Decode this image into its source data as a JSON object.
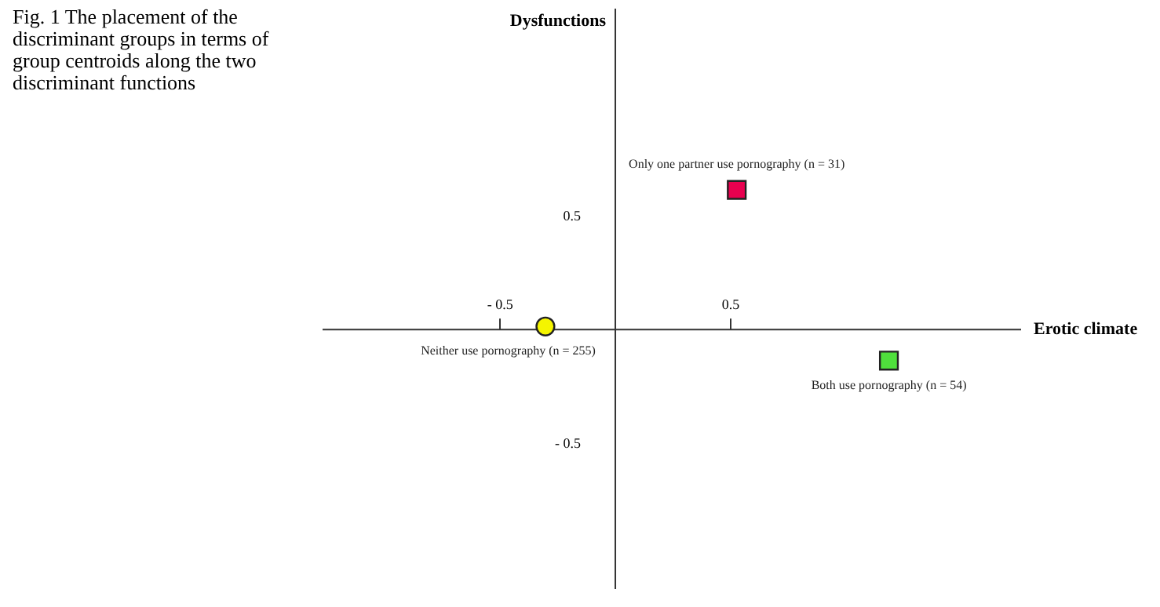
{
  "chart_data": {
    "type": "scatter",
    "title": "Fig. 1 The placement of the discriminant groups in terms of group centroids along the two discriminant functions",
    "xlabel": "Erotic climate",
    "ylabel": "Dysfunctions",
    "series": [
      {
        "name": "Only one partner use pornography  (n = 31)",
        "color": "#e8004f",
        "marker": "square",
        "x": [
          0.53
        ],
        "values": [
          0.61
        ]
      },
      {
        "name": "Neither use pornography  (n = 255)",
        "color": "#f5f500",
        "marker": "circle",
        "x": [
          -0.3
        ],
        "values": [
          0.01
        ]
      },
      {
        "name": "Both use pornography (n = 54)",
        "color": "#4fe03c",
        "marker": "square",
        "x": [
          1.19
        ],
        "values": [
          -0.14
        ]
      }
    ],
    "xlim": [
      -1.27,
      1.76
    ],
    "ylim": [
      -1.14,
      1.41
    ],
    "xticks": [
      {
        "value": -0.5,
        "label": "- 0.5"
      },
      0.5
    ],
    "yticks": [
      {
        "value": -0.5,
        "label": "- 0.5"
      },
      0.5
    ],
    "grid": false
  }
}
